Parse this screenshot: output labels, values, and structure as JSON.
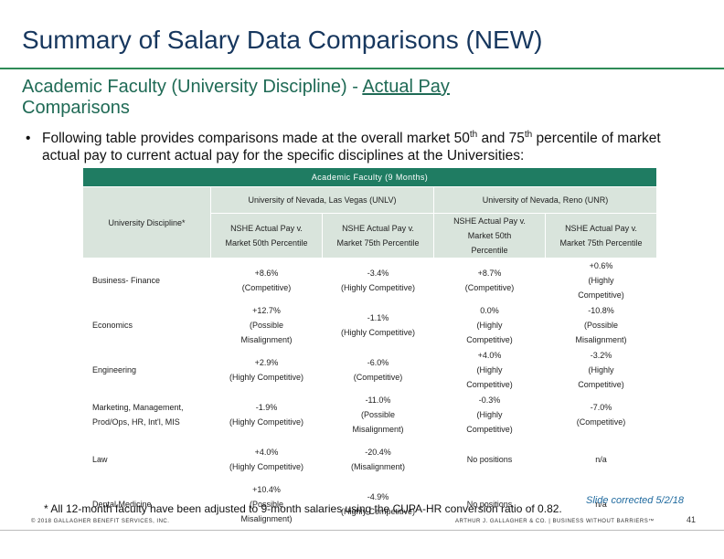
{
  "title": "Summary of Salary Data Comparisons (NEW)",
  "subtitle": {
    "line1_prefix": "Academic Faculty (University Discipline) - ",
    "line1_link": "Actual Pay",
    "line2": "Comparisons"
  },
  "bullet": {
    "symbol": "•",
    "part1": "Following table provides comparisons made at the overall market 50",
    "sup1": "th",
    "part2": " and 75",
    "sup2": "th",
    "part3": "  percentile of market actual pay to current actual pay for the specific disciplines at the Universities:"
  },
  "table": {
    "header_main": "Academic Faculty (9 Months)",
    "university_unlv": "University of Nevada, Las Vegas (UNLV)",
    "university_unr": "University of Nevada, Reno (UNR)",
    "discipline_header": "University Discipline*",
    "col_headers": [
      [
        "NSHE Actual Pay v.",
        "Market 50th Percentile"
      ],
      [
        "NSHE Actual Pay v.",
        "Market 75th Percentile"
      ],
      [
        "NSHE Actual Pay v.",
        "Market 50th",
        "Percentile"
      ],
      [
        "NSHE Actual Pay v.",
        "Market 75th Percentile"
      ]
    ],
    "rows": [
      {
        "discipline": "Business- Finance",
        "cells": [
          [
            "+8.6%",
            "(Competitive)"
          ],
          [
            "-3.4%",
            "(Highly Competitive)"
          ],
          [
            "+8.7%",
            "(Competitive)"
          ],
          [
            "+0.6%",
            "(Highly",
            "Competitive)"
          ]
        ]
      },
      {
        "discipline": "Economics",
        "cells": [
          [
            "+12.7%",
            "(Possible",
            "Misalignment)"
          ],
          [
            "-1.1%",
            "(Highly Competitive)"
          ],
          [
            "0.0%",
            "(Highly",
            "Competitive)"
          ],
          [
            "-10.8%",
            "(Possible",
            "Misalignment)"
          ]
        ]
      },
      {
        "discipline": "Engineering",
        "cells": [
          [
            "+2.9%",
            "(Highly Competitive)"
          ],
          [
            "-6.0%",
            "(Competitive)"
          ],
          [
            "+4.0%",
            "(Highly",
            "Competitive)"
          ],
          [
            "-3.2%",
            "(Highly",
            "Competitive)"
          ]
        ]
      },
      {
        "discipline": "Marketing, Management, Prod/Ops, HR, Int'l, MIS",
        "cells": [
          [
            "-1.9%",
            "(Highly Competitive)"
          ],
          [
            "-11.0%",
            "(Possible",
            "Misalignment)"
          ],
          [
            "-0.3%",
            "(Highly",
            "Competitive)"
          ],
          [
            "-7.0%",
            "(Competitive)"
          ]
        ]
      },
      {
        "discipline": "Law",
        "cells": [
          [
            "+4.0%",
            "(Highly Competitive)"
          ],
          [
            "-20.4%",
            "(Misalignment)"
          ],
          [
            "No positions"
          ],
          [
            "n/a"
          ]
        ]
      },
      {
        "discipline": "Dental Medicine",
        "cells": [
          [
            "+10.4%",
            "(Possible",
            "Misalignment)"
          ],
          [
            "-4.9%",
            "(Highly Competitive)"
          ],
          [
            "No positions"
          ],
          [
            "n/a"
          ]
        ]
      }
    ]
  },
  "footnote": "* All 12-month faculty have been adjusted to 9-month salaries using the CUPA-HR conversion ratio of 0.82.",
  "corrected_note": "Slide corrected 5/2/18",
  "copyright": "© 2018 GALLAGHER BENEFIT SERVICES, INC.",
  "tagline": "ARTHUR J. GALLAGHER & CO. | BUSINESS WITHOUT BARRIERS™",
  "page_number": "41",
  "colors": {
    "title": "#17375e",
    "subtitle": "#1f6a55",
    "header_fill": "#1f7c62",
    "cell_fill": "#d9e4dc",
    "corrected_note": "#1f6a9f"
  }
}
